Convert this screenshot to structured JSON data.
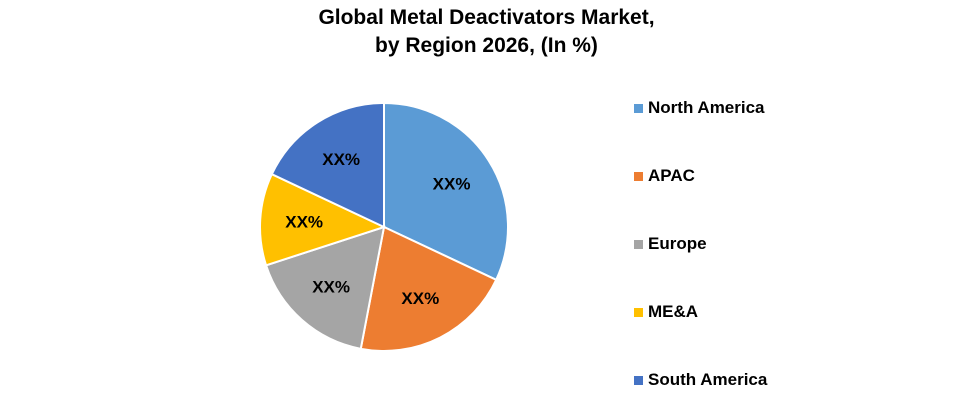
{
  "chart_data": {
    "type": "pie",
    "title": [
      "Global Metal Deactivators Market,",
      "by Region 2026, (In %)"
    ],
    "slices": [
      {
        "name": "North America",
        "value": 32,
        "label": "XX%",
        "color": "#5B9BD5"
      },
      {
        "name": "APAC",
        "value": 21,
        "label": "XX%",
        "color": "#ED7D31"
      },
      {
        "name": "Europe",
        "value": 17,
        "label": "XX%",
        "color": "#A5A5A5"
      },
      {
        "name": "ME&A",
        "value": 12,
        "label": "XX%",
        "color": "#FFC000"
      },
      {
        "name": "South America",
        "value": 18,
        "label": "XX%",
        "color": "#4472C4"
      }
    ],
    "start_angle_deg": 0,
    "direction": "clockwise",
    "legend_position": "right"
  }
}
